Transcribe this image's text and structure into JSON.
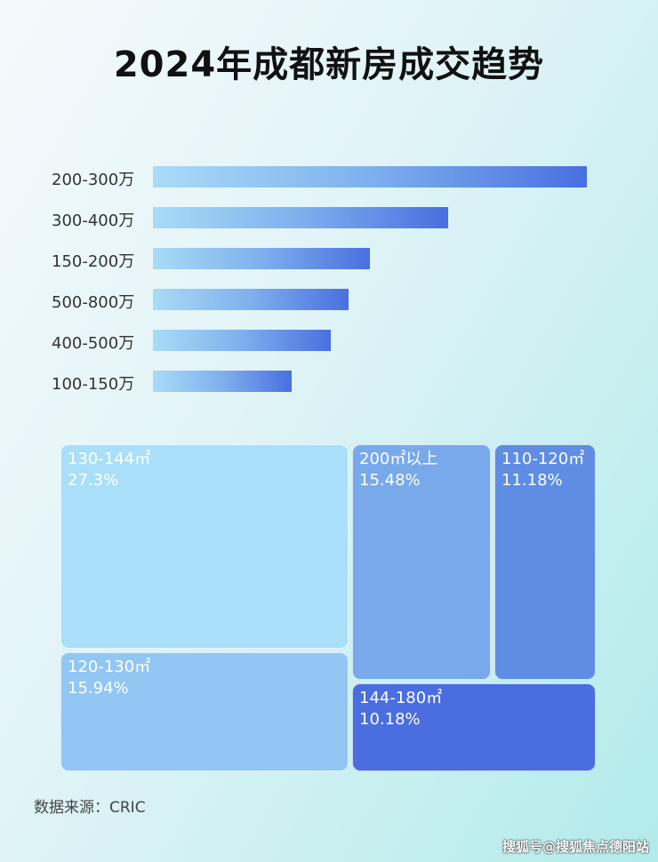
{
  "chart_data": [
    {
      "type": "bar",
      "orientation": "horizontal",
      "title": "2024年成都新房成交趋势",
      "categories": [
        "200-300万",
        "300-400万",
        "150-200万",
        "500-800万",
        "400-500万",
        "100-150万"
      ],
      "values_relative_percent": [
        100,
        68,
        50,
        45,
        41,
        32
      ],
      "gradient_colors": [
        "#a9dcf7",
        "#4a6fe0"
      ]
    },
    {
      "type": "treemap",
      "items": [
        {
          "label": "130-144㎡",
          "value_text": "27.3%",
          "value": 27.3,
          "color": "#a9dff9"
        },
        {
          "label": "120-130㎡",
          "value_text": "15.94%",
          "value": 15.94,
          "color": "#92c6f3"
        },
        {
          "label": "200㎡以上",
          "value_text": "15.48%",
          "value": 15.48,
          "color": "#78a9ea"
        },
        {
          "label": "110-120㎡",
          "value_text": "11.18%",
          "value": 11.18,
          "color": "#5f8de3"
        },
        {
          "label": "144-180㎡",
          "value_text": "10.18%",
          "value": 10.18,
          "color": "#4a6ddf"
        }
      ]
    }
  ],
  "source": "数据来源：CRIC",
  "watermark": "搜狐号@搜狐焦点德阳站"
}
